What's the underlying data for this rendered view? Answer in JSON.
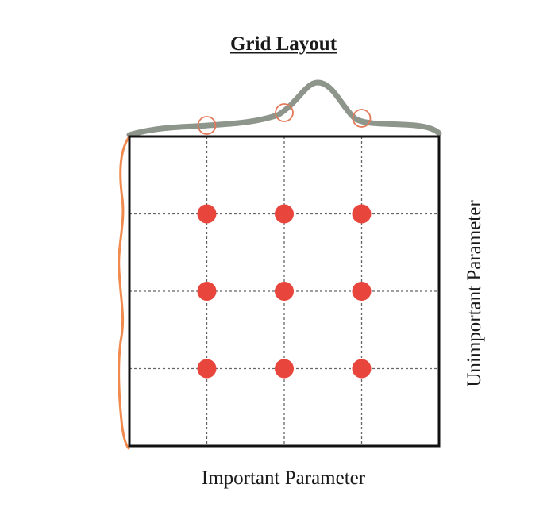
{
  "title": "Grid Layout",
  "x_axis_label": "Important Parameter",
  "y_axis_label": "Unimportant Parameter",
  "grid": {
    "x_levels": [
      1,
      2,
      3
    ],
    "y_levels": [
      1,
      2,
      3
    ]
  },
  "colors": {
    "frame": "#111111",
    "gridline": "#666666",
    "point": "#e8453c",
    "top_curve": "#8e958a",
    "left_curve": "#f08a4e",
    "projection_marker": "#e27a5a"
  }
}
